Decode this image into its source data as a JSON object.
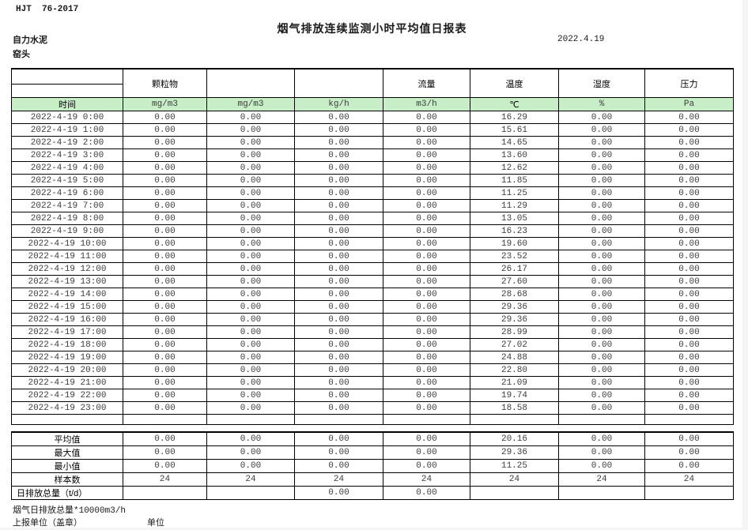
{
  "page": {
    "doc_code": "HJT  76-2017",
    "title": "烟气排放连续监测小时平均值日报表",
    "date": "2022.4.19",
    "company": "自力水泥",
    "location": "窑头"
  },
  "colors": {
    "header_green": "#c8eec8"
  },
  "table": {
    "groups": [
      "颗粒物",
      "",
      "",
      "流量",
      "温度",
      "湿度",
      "压力"
    ],
    "units": [
      "时间",
      "mg/m3",
      "mg/m3",
      "kg/h",
      "m3/h",
      "℃",
      "%",
      "Pa"
    ],
    "rows": [
      {
        "time": "2022-4-19 0:00",
        "values": [
          "0.00",
          "0.00",
          "0.00",
          "0.00",
          "16.29",
          "0.00",
          "0.00"
        ]
      },
      {
        "time": "2022-4-19 1:00",
        "values": [
          "0.00",
          "0.00",
          "0.00",
          "0.00",
          "15.61",
          "0.00",
          "0.00"
        ]
      },
      {
        "time": "2022-4-19 2:00",
        "values": [
          "0.00",
          "0.00",
          "0.00",
          "0.00",
          "14.65",
          "0.00",
          "0.00"
        ]
      },
      {
        "time": "2022-4-19 3:00",
        "values": [
          "0.00",
          "0.00",
          "0.00",
          "0.00",
          "13.60",
          "0.00",
          "0.00"
        ]
      },
      {
        "time": "2022-4-19 4:00",
        "values": [
          "0.00",
          "0.00",
          "0.00",
          "0.00",
          "12.62",
          "0.00",
          "0.00"
        ]
      },
      {
        "time": "2022-4-19 5:00",
        "values": [
          "0.00",
          "0.00",
          "0.00",
          "0.00",
          "11.85",
          "0.00",
          "0.00"
        ]
      },
      {
        "time": "2022-4-19 6:00",
        "values": [
          "0.00",
          "0.00",
          "0.00",
          "0.00",
          "11.25",
          "0.00",
          "0.00"
        ]
      },
      {
        "time": "2022-4-19 7:00",
        "values": [
          "0.00",
          "0.00",
          "0.00",
          "0.00",
          "11.29",
          "0.00",
          "0.00"
        ]
      },
      {
        "time": "2022-4-19 8:00",
        "values": [
          "0.00",
          "0.00",
          "0.00",
          "0.00",
          "13.05",
          "0.00",
          "0.00"
        ]
      },
      {
        "time": "2022-4-19 9:00",
        "values": [
          "0.00",
          "0.00",
          "0.00",
          "0.00",
          "16.23",
          "0.00",
          "0.00"
        ]
      },
      {
        "time": "2022-4-19 10:00",
        "values": [
          "0.00",
          "0.00",
          "0.00",
          "0.00",
          "19.60",
          "0.00",
          "0.00"
        ]
      },
      {
        "time": "2022-4-19 11:00",
        "values": [
          "0.00",
          "0.00",
          "0.00",
          "0.00",
          "23.52",
          "0.00",
          "0.00"
        ]
      },
      {
        "time": "2022-4-19 12:00",
        "values": [
          "0.00",
          "0.00",
          "0.00",
          "0.00",
          "26.17",
          "0.00",
          "0.00"
        ]
      },
      {
        "time": "2022-4-19 13:00",
        "values": [
          "0.00",
          "0.00",
          "0.00",
          "0.00",
          "27.60",
          "0.00",
          "0.00"
        ]
      },
      {
        "time": "2022-4-19 14:00",
        "values": [
          "0.00",
          "0.00",
          "0.00",
          "0.00",
          "28.68",
          "0.00",
          "0.00"
        ]
      },
      {
        "time": "2022-4-19 15:00",
        "values": [
          "0.00",
          "0.00",
          "0.00",
          "0.00",
          "29.36",
          "0.00",
          "0.00"
        ]
      },
      {
        "time": "2022-4-19 16:00",
        "values": [
          "0.00",
          "0.00",
          "0.00",
          "0.00",
          "29.36",
          "0.00",
          "0.00"
        ]
      },
      {
        "time": "2022-4-19 17:00",
        "values": [
          "0.00",
          "0.00",
          "0.00",
          "0.00",
          "28.99",
          "0.00",
          "0.00"
        ]
      },
      {
        "time": "2022-4-19 18:00",
        "values": [
          "0.00",
          "0.00",
          "0.00",
          "0.00",
          "27.02",
          "0.00",
          "0.00"
        ]
      },
      {
        "time": "2022-4-19 19:00",
        "values": [
          "0.00",
          "0.00",
          "0.00",
          "0.00",
          "24.88",
          "0.00",
          "0.00"
        ]
      },
      {
        "time": "2022-4-19 20:00",
        "values": [
          "0.00",
          "0.00",
          "0.00",
          "0.00",
          "22.80",
          "0.00",
          "0.00"
        ]
      },
      {
        "time": "2022-4-19 21:00",
        "values": [
          "0.00",
          "0.00",
          "0.00",
          "0.00",
          "21.09",
          "0.00",
          "0.00"
        ]
      },
      {
        "time": "2022-4-19 22:00",
        "values": [
          "0.00",
          "0.00",
          "0.00",
          "0.00",
          "19.74",
          "0.00",
          "0.00"
        ]
      },
      {
        "time": "2022-4-19 23:00",
        "values": [
          "0.00",
          "0.00",
          "0.00",
          "0.00",
          "18.58",
          "0.00",
          "0.00"
        ]
      }
    ],
    "summary": [
      {
        "label": "平均值",
        "values": [
          "0.00",
          "0.00",
          "0.00",
          "0.00",
          "20.16",
          "0.00",
          "0.00"
        ]
      },
      {
        "label": "最大值",
        "values": [
          "0.00",
          "0.00",
          "0.00",
          "0.00",
          "29.36",
          "0.00",
          "0.00"
        ]
      },
      {
        "label": "最小值",
        "values": [
          "0.00",
          "0.00",
          "0.00",
          "0.00",
          "11.25",
          "0.00",
          "0.00"
        ]
      },
      {
        "label": "样本数",
        "values": [
          "24",
          "24",
          "24",
          "24",
          "24",
          "24",
          "24"
        ]
      },
      {
        "label": "日排放总量（t/d）",
        "values": [
          "",
          "",
          "0.00",
          "0.00",
          "",
          "",
          ""
        ]
      }
    ]
  },
  "footer": {
    "total_note": "烟气日排放总量*10000m3/h",
    "report_unit": "上报单位（盖章）",
    "unit_label": "单位"
  }
}
